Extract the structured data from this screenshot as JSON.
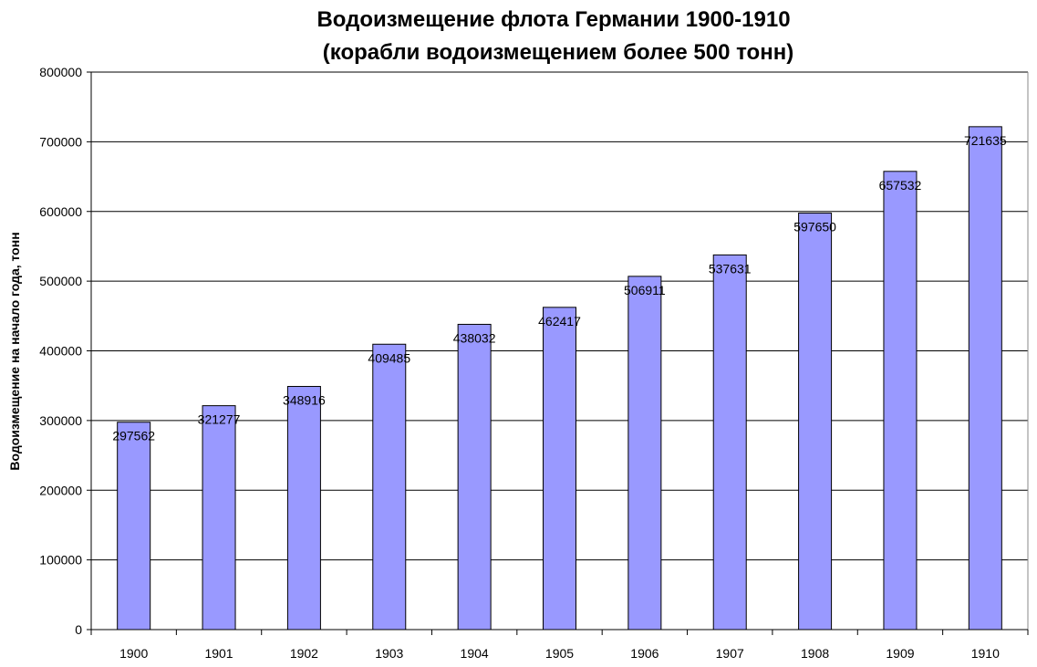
{
  "chart_data": {
    "type": "bar",
    "title": [
      "Водоизмещение флота Германии 1900-1910",
      "(корабли водоизмещением более 500 тонн)"
    ],
    "xlabel": "",
    "ylabel": "Водоизмещение на начало года, тонн",
    "categories": [
      "1900",
      "1901",
      "1902",
      "1903",
      "1904",
      "1905",
      "1906",
      "1907",
      "1908",
      "1909",
      "1910"
    ],
    "values": [
      297562,
      321277,
      348916,
      409485,
      438032,
      462417,
      506911,
      537631,
      597650,
      657532,
      721635
    ],
    "ylim": [
      0,
      800000
    ],
    "yticks": [
      "0",
      "100000",
      "200000",
      "300000",
      "400000",
      "500000",
      "600000",
      "700000",
      "800000"
    ],
    "grid": true,
    "legend": "none",
    "bar_color": "#9999FF",
    "data_labels": true
  }
}
